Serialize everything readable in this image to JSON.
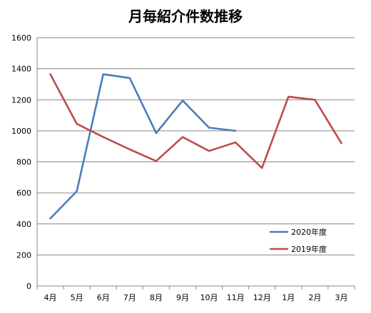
{
  "chart_data": {
    "type": "line",
    "title": "月毎紹介件数推移",
    "xlabel": "",
    "ylabel": "",
    "categories": [
      "4月",
      "5月",
      "6月",
      "7月",
      "8月",
      "9月",
      "10月",
      "11月",
      "12月",
      "1月",
      "2月",
      "3月"
    ],
    "ylim": [
      0,
      1600
    ],
    "yticks": [
      0,
      200,
      400,
      600,
      800,
      1000,
      1200,
      1400,
      1600
    ],
    "ytick_labels": [
      "0",
      "200",
      "400",
      "600",
      "800",
      "1000",
      "1200",
      "1400",
      "1600"
    ],
    "grid": true,
    "legend_position": "lower-right",
    "series": [
      {
        "name": "2020年度",
        "color": "#4a7ebb",
        "values": [
          435,
          610,
          1365,
          1340,
          985,
          1195,
          1020,
          1000,
          null,
          null,
          null,
          null
        ]
      },
      {
        "name": "2019年度",
        "color": "#be4b48",
        "values": [
          1365,
          1045,
          960,
          880,
          805,
          960,
          870,
          925,
          760,
          1220,
          1200,
          920
        ]
      }
    ]
  }
}
